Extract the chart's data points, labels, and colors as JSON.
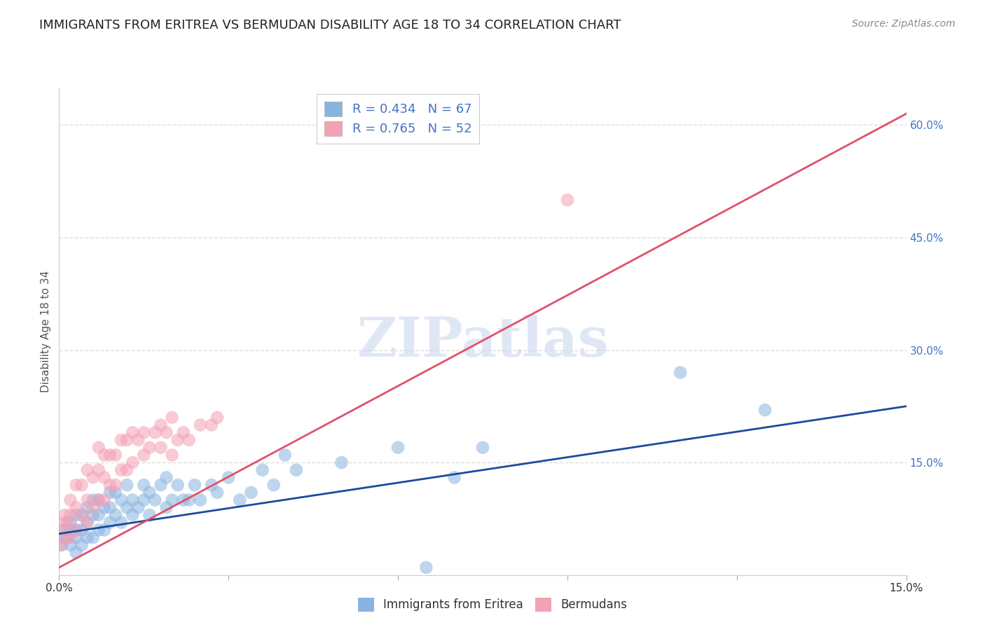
{
  "title": "IMMIGRANTS FROM ERITREA VS BERMUDAN DISABILITY AGE 18 TO 34 CORRELATION CHART",
  "source_text": "Source: ZipAtlas.com",
  "ylabel": "Disability Age 18 to 34",
  "xlim": [
    0.0,
    0.15
  ],
  "ylim": [
    0.0,
    0.65
  ],
  "xticks": [
    0.0,
    0.03,
    0.06,
    0.09,
    0.12,
    0.15
  ],
  "xticklabels": [
    "0.0%",
    "",
    "",
    "",
    "",
    "15.0%"
  ],
  "yticks_right": [
    0.0,
    0.15,
    0.3,
    0.45,
    0.6
  ],
  "yticklabels_right": [
    "",
    "15.0%",
    "30.0%",
    "45.0%",
    "60.0%"
  ],
  "grid_color": "#dddddd",
  "background_color": "#ffffff",
  "title_fontsize": 13,
  "watermark_text": "ZIPatlas",
  "series": [
    {
      "label": "Immigrants from Eritrea",
      "color": "#8ab4e0",
      "R": 0.434,
      "N": 67,
      "line_color": "#1a4a9e",
      "scatter_x": [
        0.0005,
        0.001,
        0.001,
        0.0015,
        0.002,
        0.002,
        0.002,
        0.003,
        0.003,
        0.003,
        0.003,
        0.004,
        0.004,
        0.004,
        0.005,
        0.005,
        0.005,
        0.006,
        0.006,
        0.006,
        0.007,
        0.007,
        0.007,
        0.008,
        0.008,
        0.009,
        0.009,
        0.009,
        0.01,
        0.01,
        0.011,
        0.011,
        0.012,
        0.012,
        0.013,
        0.013,
        0.014,
        0.015,
        0.015,
        0.016,
        0.016,
        0.017,
        0.018,
        0.019,
        0.019,
        0.02,
        0.021,
        0.022,
        0.023,
        0.024,
        0.025,
        0.027,
        0.028,
        0.03,
        0.032,
        0.034,
        0.036,
        0.038,
        0.04,
        0.042,
        0.05,
        0.06,
        0.065,
        0.07,
        0.075,
        0.11,
        0.125
      ],
      "scatter_y": [
        0.04,
        0.05,
        0.06,
        0.05,
        0.04,
        0.06,
        0.07,
        0.05,
        0.06,
        0.08,
        0.03,
        0.04,
        0.06,
        0.08,
        0.05,
        0.07,
        0.09,
        0.05,
        0.08,
        0.1,
        0.06,
        0.08,
        0.1,
        0.06,
        0.09,
        0.07,
        0.09,
        0.11,
        0.08,
        0.11,
        0.07,
        0.1,
        0.09,
        0.12,
        0.08,
        0.1,
        0.09,
        0.1,
        0.12,
        0.08,
        0.11,
        0.1,
        0.12,
        0.09,
        0.13,
        0.1,
        0.12,
        0.1,
        0.1,
        0.12,
        0.1,
        0.12,
        0.11,
        0.13,
        0.1,
        0.11,
        0.14,
        0.12,
        0.16,
        0.14,
        0.15,
        0.17,
        0.01,
        0.13,
        0.17,
        0.27,
        0.22
      ]
    },
    {
      "label": "Bermudans",
      "color": "#f4a0b5",
      "R": 0.765,
      "N": 52,
      "line_color": "#e0506a",
      "scatter_x": [
        0.0003,
        0.0005,
        0.001,
        0.001,
        0.001,
        0.0015,
        0.002,
        0.002,
        0.002,
        0.003,
        0.003,
        0.003,
        0.004,
        0.004,
        0.005,
        0.005,
        0.005,
        0.006,
        0.006,
        0.007,
        0.007,
        0.007,
        0.008,
        0.008,
        0.008,
        0.009,
        0.009,
        0.01,
        0.01,
        0.011,
        0.011,
        0.012,
        0.012,
        0.013,
        0.013,
        0.014,
        0.015,
        0.015,
        0.016,
        0.017,
        0.018,
        0.018,
        0.019,
        0.02,
        0.02,
        0.021,
        0.022,
        0.023,
        0.025,
        0.027,
        0.09,
        0.028
      ],
      "scatter_y": [
        0.04,
        0.06,
        0.05,
        0.07,
        0.08,
        0.07,
        0.05,
        0.08,
        0.1,
        0.06,
        0.09,
        0.12,
        0.08,
        0.12,
        0.07,
        0.1,
        0.14,
        0.09,
        0.13,
        0.1,
        0.14,
        0.17,
        0.1,
        0.13,
        0.16,
        0.12,
        0.16,
        0.12,
        0.16,
        0.14,
        0.18,
        0.14,
        0.18,
        0.15,
        0.19,
        0.18,
        0.16,
        0.19,
        0.17,
        0.19,
        0.17,
        0.2,
        0.19,
        0.16,
        0.21,
        0.18,
        0.19,
        0.18,
        0.2,
        0.2,
        0.5,
        0.21
      ]
    }
  ],
  "blue_line_y0": 0.055,
  "blue_line_y1": 0.225,
  "pink_line_y0": 0.01,
  "pink_line_y1": 0.615
}
